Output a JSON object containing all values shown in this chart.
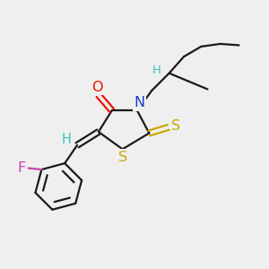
{
  "bg_color": "#efefef",
  "bond_color": "#1a1a1a",
  "O_color": "#ee1100",
  "N_color": "#1a3bcc",
  "S_color": "#c8a800",
  "F_color": "#cc44aa",
  "H_color": "#3abfbf",
  "line_width": 1.6,
  "font_size": 10.5,
  "xlim": [
    0,
    10
  ],
  "ylim": [
    0,
    10
  ],
  "figsize": [
    3.0,
    3.0
  ],
  "dpi": 100
}
